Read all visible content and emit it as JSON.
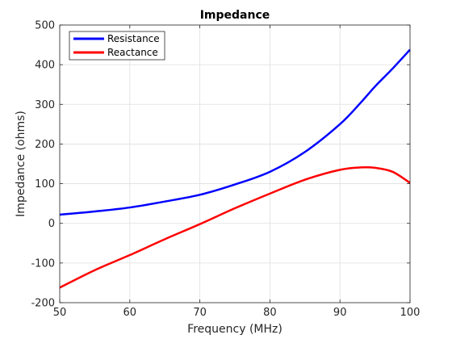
{
  "chart_data": {
    "type": "line",
    "title": "Impedance",
    "xlabel": "Frequency (MHz)",
    "ylabel": "Impedance (ohms)",
    "xlim": [
      50,
      100
    ],
    "ylim": [
      -200,
      500
    ],
    "xticks": [
      "50",
      "60",
      "70",
      "80",
      "90",
      "100"
    ],
    "yticks": [
      "-200",
      "-100",
      "0",
      "100",
      "200",
      "300",
      "400",
      "500"
    ],
    "grid": true,
    "legend_position": "top-left",
    "x": [
      50,
      55,
      60,
      65,
      70,
      75,
      80,
      85,
      90,
      93,
      95,
      97.5,
      100
    ],
    "series": [
      {
        "name": "Resistance",
        "color": "#0000ff",
        "values": [
          22,
          30,
          40,
          55,
          72,
          98,
          130,
          180,
          250,
          305,
          345,
          390,
          438
        ]
      },
      {
        "name": "Reactance",
        "color": "#ff0000",
        "values": [
          -162,
          -118,
          -80,
          -40,
          -2,
          38,
          75,
          110,
          135,
          141,
          140,
          130,
          102
        ]
      }
    ]
  }
}
